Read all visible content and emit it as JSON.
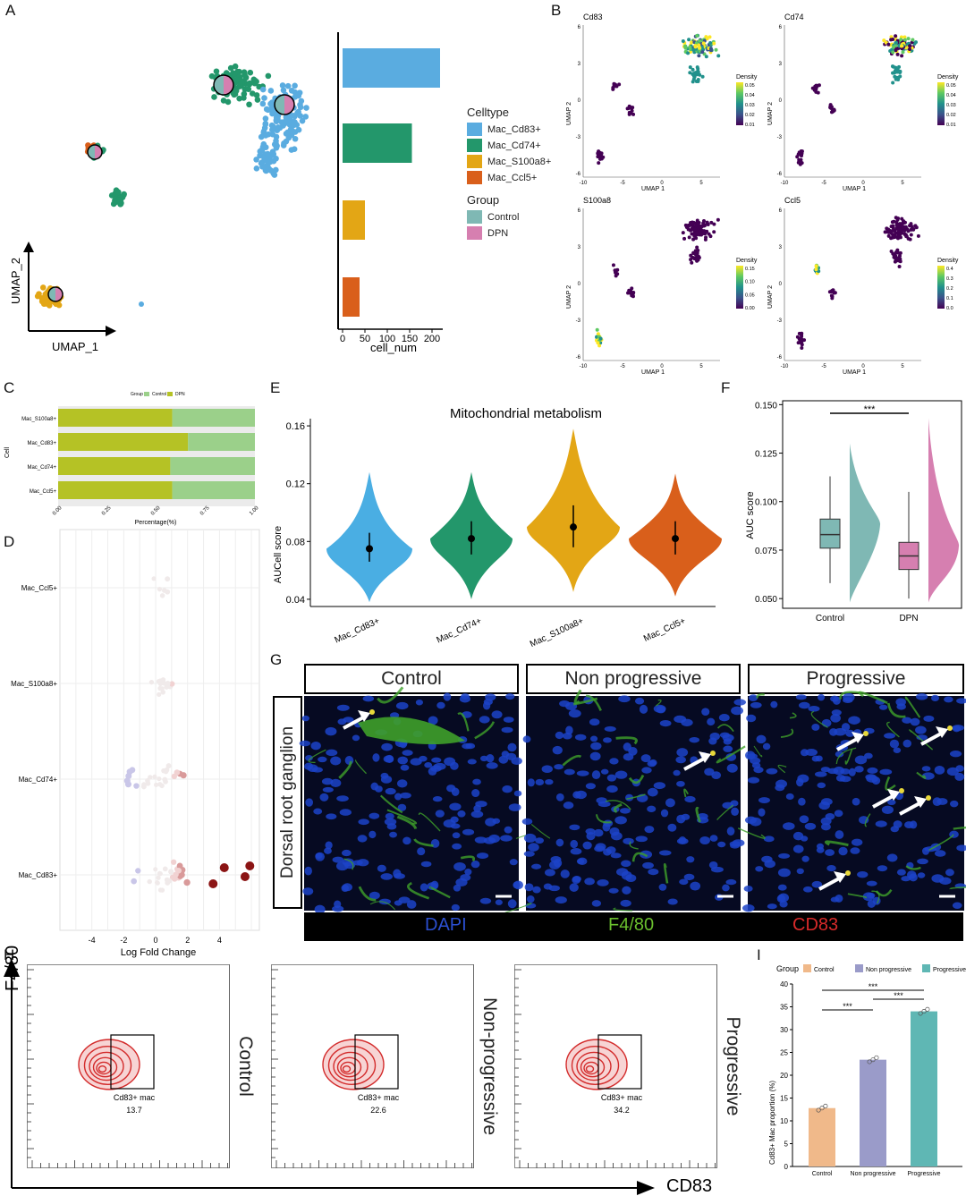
{
  "panels": {
    "A": "A",
    "B": "B",
    "C": "C",
    "D": "D",
    "E": "E",
    "F": "F",
    "G": "G",
    "H": "H",
    "I": "I"
  },
  "panelA": {
    "umap_x": "UMAP_1",
    "umap_y": "UMAP_2",
    "legend_celltype_title": "Celltype",
    "celltypes": [
      {
        "name": "Mac_Cd83+",
        "color": "#5aace0"
      },
      {
        "name": "Mac_Cd74+",
        "color": "#23976b"
      },
      {
        "name": "Mac_S100a8+",
        "color": "#e3a615"
      },
      {
        "name": "Mac_Ccl5+",
        "color": "#d95f1b"
      }
    ],
    "legend_group_title": "Group",
    "groups": [
      {
        "name": "Control",
        "color": "#7fb8b4"
      },
      {
        "name": "DPN",
        "color": "#d67fb0"
      }
    ],
    "bar_xlabel": "cell_num",
    "bar_ticks": [
      "0",
      "50",
      "100",
      "150",
      "200"
    ]
  },
  "panelB": {
    "density_title": "Density",
    "umap1": "UMAP 1",
    "umap2": "UMAP 2",
    "genes": [
      {
        "name": "Cd83",
        "ticks": [
          "0.05",
          "0.04",
          "0.03",
          "0.02",
          "0.01"
        ]
      },
      {
        "name": "Cd74",
        "ticks": [
          "0.05",
          "0.04",
          "0.03",
          "0.02",
          "0.01"
        ]
      },
      {
        "name": "S100a8",
        "ticks": [
          "0.15",
          "0.10",
          "0.05",
          "0.00"
        ]
      },
      {
        "name": "Ccl5",
        "ticks": [
          "0.4",
          "0.3",
          "0.2",
          "0.1",
          "0.0"
        ]
      }
    ],
    "xticks": [
      "-10",
      "-5",
      "0",
      "5"
    ],
    "yticks": [
      "6",
      "3",
      "0",
      "-3",
      "-6"
    ]
  },
  "panelC": {
    "legend_group": "Group",
    "legend_control": "Control",
    "legend_dpn": "DPN",
    "ylabel": "Cell",
    "xlabel": "Percentage(%)",
    "xticks": [
      "0.00",
      "0.25",
      "0.50",
      "0.75",
      "1.00"
    ],
    "colors": {
      "control": "#9bd08a",
      "dpn": "#b5c225"
    }
  },
  "panelD": {
    "xlabel": "Log Fold Change",
    "xticks": [
      "-4",
      "-2",
      "0",
      "2",
      "4"
    ]
  },
  "panelE": {
    "title": "Mitochondrial metabolism",
    "ylabel": "AUCell score",
    "yticks": [
      "0.16",
      "0.12",
      "0.08",
      "0.04"
    ]
  },
  "panelF": {
    "ylabel": "AUC score",
    "yticks": [
      "0.150",
      "0.125",
      "0.100",
      "0.075",
      "0.050"
    ],
    "groups": [
      "Control",
      "DPN"
    ],
    "sig": "***"
  },
  "panelG": {
    "headers": [
      "Control",
      "Non progressive",
      "Progressive"
    ],
    "side_label": "Dorsal root ganglion",
    "channels": [
      {
        "name": "DAPI",
        "color": "#2b4fd0"
      },
      {
        "name": "F4/80",
        "color": "#6abf2e"
      },
      {
        "name": "CD83",
        "color": "#d82a2a"
      }
    ]
  },
  "panelH": {
    "yaxis": "F4/80",
    "xaxis": "CD83",
    "plots": [
      {
        "side": "Control",
        "gate": "Cd83+ mac",
        "value": "13.7"
      },
      {
        "side": "Non-progressive",
        "gate": "Cd83+ mac",
        "value": "22.6"
      },
      {
        "side": "Progressive",
        "gate": "Cd83+ mac",
        "value": "34.2"
      }
    ]
  },
  "panelI": {
    "legend_title": "Group",
    "ylabel": "Cd83+ Mac proportion (%)",
    "yticks": [
      "40",
      "35",
      "30",
      "25",
      "20",
      "15",
      "10",
      "5",
      "0"
    ],
    "sig": "***"
  },
  "chart_data": [
    {
      "id": "A-bar",
      "type": "bar",
      "orientation": "horizontal",
      "categories": [
        "Mac_Cd83+",
        "Mac_Cd74+",
        "Mac_S100a8+",
        "Mac_Ccl5+"
      ],
      "values": [
        218,
        155,
        50,
        38
      ],
      "xlabel": "cell_num",
      "xlim": [
        0,
        230
      ]
    },
    {
      "id": "C",
      "type": "bar",
      "stacked": true,
      "orientation": "horizontal",
      "categories": [
        "Mac_S100a8+",
        "Mac_Cd83+",
        "Mac_Cd74+",
        "Mac_Ccl5+"
      ],
      "series": [
        {
          "name": "DPN",
          "values": [
            0.58,
            0.66,
            0.57,
            0.58
          ]
        },
        {
          "name": "Control",
          "values": [
            0.42,
            0.34,
            0.43,
            0.42
          ]
        }
      ],
      "xlabel": "Percentage(%)",
      "ylabel": "Cell",
      "xlim": [
        0,
        1
      ]
    },
    {
      "id": "E",
      "type": "violin",
      "title": "Mitochondrial metabolism",
      "ylabel": "AUCell score",
      "ylim": [
        0.035,
        0.165
      ],
      "categories": [
        "Mac_Cd83+",
        "Mac_Cd74+",
        "Mac_S100a8+",
        "Mac_Ccl5+"
      ],
      "median": [
        0.075,
        0.082,
        0.09,
        0.082
      ],
      "q1": [
        0.066,
        0.071,
        0.076,
        0.071
      ],
      "q3": [
        0.086,
        0.094,
        0.105,
        0.094
      ],
      "min": [
        0.038,
        0.04,
        0.045,
        0.042
      ],
      "max": [
        0.128,
        0.128,
        0.158,
        0.127
      ],
      "colors": [
        "#4aaee3",
        "#23976b",
        "#e3a615",
        "#d95f1b"
      ]
    },
    {
      "id": "F",
      "type": "box",
      "ylabel": "AUC score",
      "ylim": [
        0.045,
        0.152
      ],
      "categories": [
        "Control",
        "DPN"
      ],
      "median": [
        0.083,
        0.072
      ],
      "q1": [
        0.076,
        0.065
      ],
      "q3": [
        0.091,
        0.079
      ],
      "whisker_low": [
        0.058,
        0.05
      ],
      "whisker_high": [
        0.113,
        0.105
      ],
      "colors": [
        "#7fb8b4",
        "#d67fb0"
      ],
      "sig": "***"
    },
    {
      "id": "I",
      "type": "bar",
      "ylabel": "Cd83+ Mac proportion (%)",
      "ylim": [
        0,
        40
      ],
      "categories": [
        "Control",
        "Non progressive",
        "Progressive"
      ],
      "values": [
        12.8,
        23.4,
        34.0
      ],
      "colors": [
        "#f0b98a",
        "#9a9bc9",
        "#5fb7b4"
      ]
    },
    {
      "id": "D",
      "type": "scatter",
      "xlabel": "Log Fold Change",
      "xlim": [
        -6,
        6.5
      ],
      "categories": [
        "Mac_Ccl5+",
        "Mac_S100a8+",
        "Mac_Cd74+",
        "Mac_Cd83+"
      ]
    }
  ]
}
